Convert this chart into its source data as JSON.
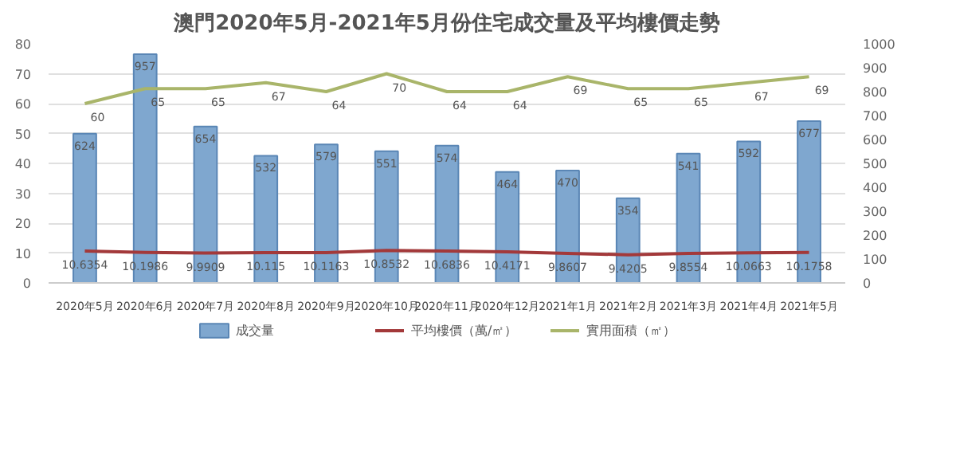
{
  "chart_data": {
    "type": "bar",
    "title": "澳門2020年5月-2021年5月份住宅成交量及平均樓價走勢",
    "categories": [
      "2020年5月",
      "2020年6月",
      "2020年7月",
      "2020年8月",
      "2020年9月",
      "2020年10月",
      "2020年11月",
      "2020年12月",
      "2021年1月",
      "2021年2月",
      "2021年3月",
      "2021年4月",
      "2021年5月"
    ],
    "series": [
      {
        "name": "成交量",
        "axis": "y2",
        "color": "#7fa7cf",
        "values": [
          624,
          957,
          654,
          532,
          579,
          551,
          574,
          464,
          470,
          354,
          541,
          592,
          677
        ]
      },
      {
        "name": "平均樓價（萬/㎡）",
        "type": "line",
        "color": "#a3393a",
        "values": [
          10.6354,
          10.1986,
          9.9909,
          10.115,
          10.1163,
          10.8532,
          10.6836,
          10.4171,
          9.8607,
          9.4205,
          9.8554,
          10.0663,
          10.1758
        ]
      },
      {
        "name": "實用面積（㎡）",
        "type": "line",
        "color": "#a9b56a",
        "values": [
          60,
          65,
          65,
          67,
          64,
          70,
          64,
          64,
          69,
          65,
          65,
          67,
          69
        ]
      }
    ],
    "ylim": [
      0,
      80
    ],
    "yticks": [
      0,
      10,
      20,
      30,
      40,
      50,
      60,
      70,
      80
    ],
    "y2lim": [
      0,
      1000
    ],
    "y2ticks": [
      0,
      100,
      200,
      300,
      400,
      500,
      600,
      700,
      800,
      900,
      1000
    ],
    "grid": "y",
    "legend": "bottom",
    "data_labels": true
  }
}
